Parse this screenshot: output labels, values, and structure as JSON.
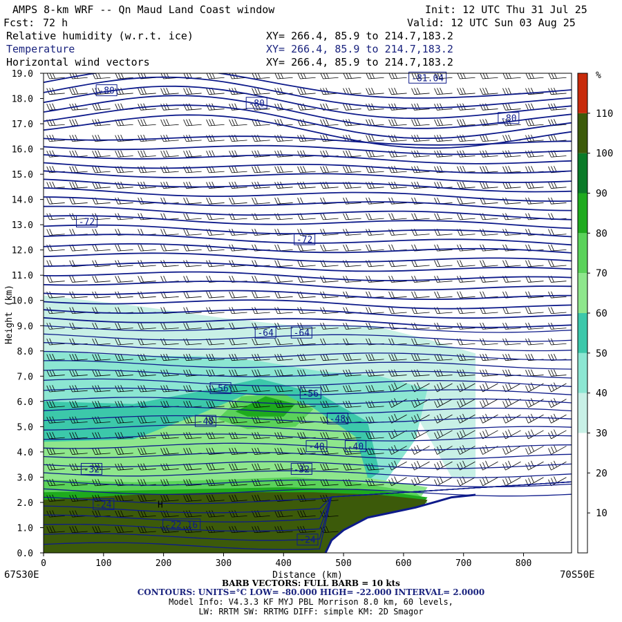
{
  "header": {
    "title": "AMPS 8-km WRF -- Qn Maud Land Coast window",
    "init": "Init: 12 UTC Thu 31 Jul 25",
    "fcst_label": "Fcst:",
    "fcst_value": "72 h",
    "valid": "Valid: 12 UTC Sun 03 Aug 25",
    "fields": [
      {
        "name": "Relative humidity (w.r.t. ice)",
        "xy": "XY= 266.4, 85.9 to 214.7,183.2",
        "color": "#000000"
      },
      {
        "name": "Temperature",
        "xy": "XY= 266.4, 85.9 to 214.7,183.2",
        "color": "#1a237e"
      },
      {
        "name": "Horizontal wind vectors",
        "xy": "XY= 266.4, 85.9 to 214.7,183.2",
        "color": "#000000"
      }
    ]
  },
  "colorbar": {
    "unit": "%",
    "levels": [
      10,
      20,
      30,
      40,
      50,
      60,
      70,
      80,
      90,
      100,
      110
    ],
    "colors": [
      "#ffffff",
      "#ffffff",
      "#ffffff",
      "#c8f0e6",
      "#8ce6d2",
      "#3cc8aa",
      "#8ee68c",
      "#5ad25a",
      "#1eaa1e",
      "#0a7a28",
      "#3c5a0a",
      "#c82a0a"
    ]
  },
  "chart_data": {
    "type": "heatmap",
    "xlabel": "Distance (km)",
    "ylabel": "Height (km)",
    "xlim": [
      0,
      880
    ],
    "ylim": [
      0,
      19
    ],
    "x_ticks": [
      0,
      100,
      200,
      300,
      400,
      500,
      600,
      700,
      800
    ],
    "y_ticks": [
      "0.0",
      "1.0",
      "2.0",
      "3.0",
      "4.0",
      "5.0",
      "6.0",
      "7.0",
      "8.0",
      "9.0",
      "10.0",
      "11.0",
      "12.0",
      "13.0",
      "14.0",
      "15.0",
      "16.0",
      "17.0",
      "18.0",
      "19.0"
    ],
    "left_endpoint": "67S30E",
    "right_endpoint": "70S50E",
    "temperature_contour_labels": [
      {
        "label": "-80",
        "x": 105,
        "y": 18.3
      },
      {
        "label": "-80",
        "x": 355,
        "y": 17.8
      },
      {
        "label": "-80",
        "x": 775,
        "y": 17.2
      },
      {
        "label": "-81.04",
        "x": 640,
        "y": 18.8
      },
      {
        "label": "-72",
        "x": 72,
        "y": 13.1
      },
      {
        "label": "-72",
        "x": 435,
        "y": 12.4
      },
      {
        "label": "-64",
        "x": 370,
        "y": 8.7
      },
      {
        "label": "-64",
        "x": 430,
        "y": 8.7
      },
      {
        "label": "-56",
        "x": 295,
        "y": 6.5
      },
      {
        "label": "-56",
        "x": 445,
        "y": 6.3
      },
      {
        "label": "-48",
        "x": 270,
        "y": 5.2
      },
      {
        "label": "-48",
        "x": 490,
        "y": 5.3
      },
      {
        "label": "-40",
        "x": 455,
        "y": 4.2
      },
      {
        "label": "-40",
        "x": 520,
        "y": 4.2
      },
      {
        "label": "-32",
        "x": 80,
        "y": 3.3
      },
      {
        "label": "-32",
        "x": 430,
        "y": 3.3
      },
      {
        "label": "-24",
        "x": 100,
        "y": 1.9
      },
      {
        "label": "-24",
        "x": 440,
        "y": 0.5
      },
      {
        "label": "-22.16",
        "x": 230,
        "y": 1.1
      }
    ],
    "annotations": [
      {
        "label": "H",
        "x": 190,
        "y": 1.8
      }
    ]
  },
  "footer": {
    "barb": "BARB VECTORS: FULL BARB = 10 kts",
    "contours": "CONTOURS: UNITS=°C LOW= -80.000 HIGH= -22.000 INTERVAL= 2.0000",
    "model": "Model Info: V4.3.3 KF MYJ PBL Morrison 8.0 km, 60 levels,",
    "lw": "LW: RRTM SW: RRTMG DIFF: simple KM: 2D Smagor"
  }
}
